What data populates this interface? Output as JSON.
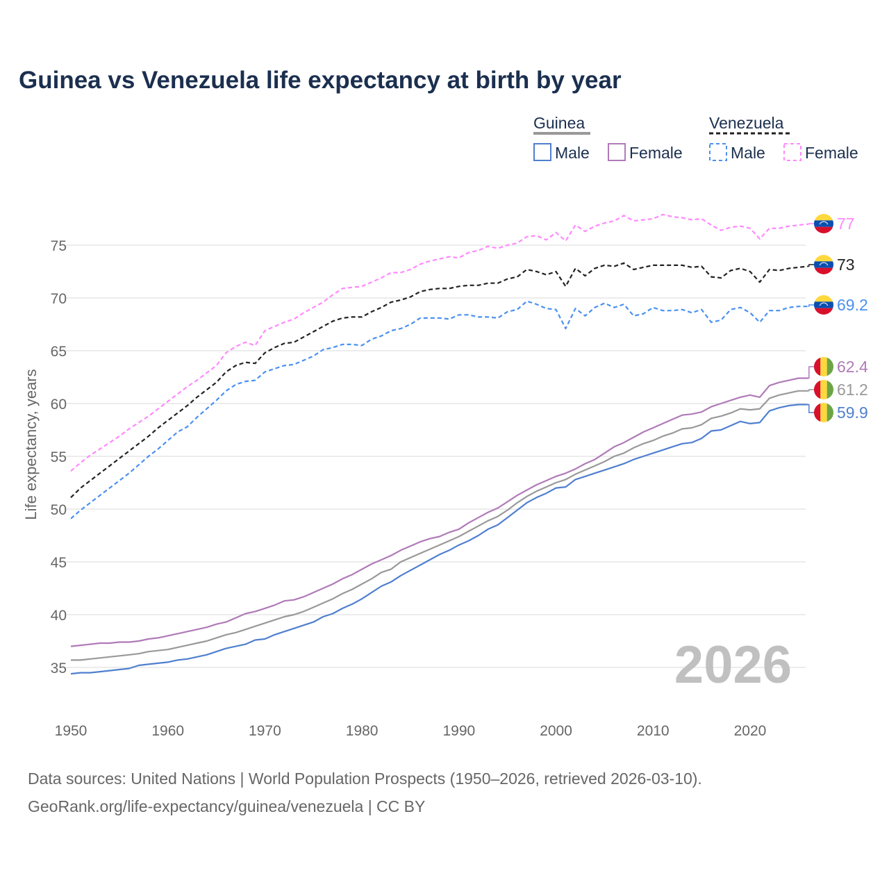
{
  "title": "Guinea vs Venezuela life expectancy at birth by year",
  "year_watermark": "2026",
  "source_line1": "Data sources: United Nations | World Population Prospects (1950–2026, retrieved 2026-03-10).",
  "source_line2": "GeoRank.org/life-expectancy/guinea/venezuela | CC BY",
  "legend": {
    "guinea": "Guinea",
    "venezuela": "Venezuela",
    "male": "Male",
    "female": "Female"
  },
  "chart_data": {
    "type": "line",
    "title": "Guinea vs Venezuela life expectancy at birth by year",
    "xlabel": "",
    "ylabel": "Life expectancy, years",
    "xlim": [
      1950,
      2026
    ],
    "ylim": [
      35,
      77
    ],
    "x_start": 1950,
    "xticks": [
      "1950",
      "1960",
      "1970",
      "1980",
      "1990",
      "2000",
      "2010",
      "2020"
    ],
    "yticks": [
      "35",
      "40",
      "45",
      "50",
      "55",
      "60",
      "65",
      "70",
      "75"
    ],
    "legend_position": "top-right",
    "grid": true,
    "series": [
      {
        "name": "Venezuela Female",
        "country": "Venezuela",
        "end_label": "77",
        "color": "#ff88ff",
        "dashed": true,
        "flag": "venezuela",
        "values": [
          53.6,
          54.4,
          55.1,
          55.7,
          56.3,
          56.9,
          57.6,
          58.2,
          58.8,
          59.5,
          60.2,
          60.9,
          61.6,
          62.2,
          62.9,
          63.6,
          64.8,
          65.4,
          65.8,
          65.5,
          66.9,
          67.3,
          67.7,
          68.0,
          68.6,
          69.1,
          69.6,
          70.3,
          70.9,
          71.0,
          71.1,
          71.5,
          71.9,
          72.4,
          72.4,
          72.7,
          73.2,
          73.5,
          73.7,
          73.9,
          73.8,
          74.3,
          74.5,
          74.9,
          74.7,
          75.0,
          75.2,
          75.8,
          75.9,
          75.5,
          76.2,
          75.4,
          76.9,
          76.3,
          76.8,
          77.1,
          77.3,
          77.8,
          77.3,
          77.4,
          77.5,
          77.9,
          77.7,
          77.6,
          77.4,
          77.5,
          76.9,
          76.4,
          76.7,
          76.8,
          76.6,
          75.6,
          76.6,
          76.6,
          76.8,
          76.9,
          77.0
        ]
      },
      {
        "name": "Venezuela Total",
        "country": "Venezuela",
        "end_label": "73",
        "color": "#222222",
        "dashed": true,
        "flag": "venezuela",
        "values": [
          51.1,
          52.0,
          52.7,
          53.4,
          54.1,
          54.8,
          55.5,
          56.2,
          56.9,
          57.7,
          58.4,
          59.1,
          59.8,
          60.6,
          61.3,
          62.0,
          63.0,
          63.6,
          63.9,
          63.8,
          64.8,
          65.3,
          65.7,
          65.8,
          66.3,
          66.8,
          67.3,
          67.8,
          68.1,
          68.2,
          68.2,
          68.7,
          69.1,
          69.6,
          69.8,
          70.1,
          70.6,
          70.8,
          70.9,
          70.9,
          71.1,
          71.2,
          71.2,
          71.4,
          71.4,
          71.8,
          72.0,
          72.7,
          72.5,
          72.2,
          72.5,
          71.1,
          72.8,
          72.1,
          72.8,
          73.1,
          73.0,
          73.3,
          72.7,
          72.9,
          73.1,
          73.1,
          73.1,
          73.1,
          72.9,
          73.0,
          72.0,
          71.9,
          72.6,
          72.8,
          72.5,
          71.5,
          72.7,
          72.6,
          72.8,
          72.9,
          73.0
        ]
      },
      {
        "name": "Venezuela Male",
        "country": "Venezuela",
        "end_label": "69.2",
        "color": "#4a90f0",
        "dashed": true,
        "flag": "venezuela",
        "values": [
          49.1,
          49.9,
          50.6,
          51.3,
          52.0,
          52.7,
          53.4,
          54.2,
          55.0,
          55.7,
          56.5,
          57.3,
          57.8,
          58.7,
          59.5,
          60.3,
          61.2,
          61.8,
          62.1,
          62.2,
          63.0,
          63.3,
          63.6,
          63.7,
          64.1,
          64.5,
          65.1,
          65.3,
          65.6,
          65.6,
          65.5,
          66.1,
          66.4,
          66.9,
          67.1,
          67.5,
          68.1,
          68.1,
          68.1,
          68.0,
          68.4,
          68.4,
          68.2,
          68.2,
          68.1,
          68.7,
          68.9,
          69.7,
          69.4,
          69.0,
          68.9,
          67.1,
          69.0,
          68.3,
          69.1,
          69.5,
          69.1,
          69.4,
          68.3,
          68.5,
          69.1,
          68.8,
          68.8,
          68.9,
          68.6,
          68.9,
          67.7,
          67.9,
          68.9,
          69.1,
          68.6,
          67.7,
          68.8,
          68.8,
          69.1,
          69.2,
          69.2
        ]
      },
      {
        "name": "Guinea Female",
        "country": "Guinea",
        "end_label": "62.4",
        "color": "#b07ab8",
        "dashed": false,
        "flag": "guinea",
        "values": [
          37.0,
          37.1,
          37.2,
          37.3,
          37.3,
          37.4,
          37.4,
          37.5,
          37.7,
          37.8,
          38.0,
          38.2,
          38.4,
          38.6,
          38.8,
          39.1,
          39.3,
          39.7,
          40.1,
          40.3,
          40.6,
          40.9,
          41.3,
          41.4,
          41.7,
          42.1,
          42.5,
          42.9,
          43.4,
          43.8,
          44.3,
          44.8,
          45.2,
          45.6,
          46.1,
          46.5,
          46.9,
          47.2,
          47.4,
          47.8,
          48.1,
          48.7,
          49.2,
          49.7,
          50.1,
          50.7,
          51.3,
          51.8,
          52.3,
          52.7,
          53.1,
          53.4,
          53.8,
          54.3,
          54.7,
          55.3,
          55.9,
          56.3,
          56.8,
          57.3,
          57.7,
          58.1,
          58.5,
          58.9,
          59.0,
          59.2,
          59.7,
          60.0,
          60.3,
          60.6,
          60.8,
          60.6,
          61.7,
          62.0,
          62.2,
          62.4,
          62.4
        ]
      },
      {
        "name": "Guinea Total",
        "country": "Guinea",
        "end_label": "61.2",
        "color": "#999999",
        "dashed": false,
        "flag": "guinea",
        "values": [
          35.7,
          35.7,
          35.8,
          35.9,
          36.0,
          36.1,
          36.2,
          36.3,
          36.5,
          36.6,
          36.7,
          36.9,
          37.1,
          37.3,
          37.5,
          37.8,
          38.1,
          38.3,
          38.6,
          38.9,
          39.2,
          39.5,
          39.8,
          40.0,
          40.3,
          40.7,
          41.1,
          41.5,
          42.0,
          42.4,
          42.9,
          43.4,
          44.0,
          44.3,
          45.0,
          45.4,
          45.8,
          46.2,
          46.6,
          47.0,
          47.4,
          47.9,
          48.4,
          48.9,
          49.3,
          49.9,
          50.6,
          51.2,
          51.7,
          52.1,
          52.5,
          52.8,
          53.3,
          53.7,
          54.1,
          54.5,
          55.0,
          55.3,
          55.8,
          56.2,
          56.5,
          56.9,
          57.2,
          57.6,
          57.7,
          58.0,
          58.6,
          58.8,
          59.1,
          59.5,
          59.4,
          59.5,
          60.5,
          60.8,
          61.0,
          61.2,
          61.2
        ]
      },
      {
        "name": "Guinea Male",
        "country": "Guinea",
        "end_label": "59.9",
        "color": "#4f7fcf",
        "dashed": false,
        "flag": "guinea",
        "values": [
          34.4,
          34.5,
          34.5,
          34.6,
          34.7,
          34.8,
          34.9,
          35.2,
          35.3,
          35.4,
          35.5,
          35.7,
          35.8,
          36.0,
          36.2,
          36.5,
          36.8,
          37.0,
          37.2,
          37.6,
          37.7,
          38.1,
          38.4,
          38.7,
          39.0,
          39.3,
          39.8,
          40.1,
          40.6,
          41.0,
          41.5,
          42.1,
          42.7,
          43.1,
          43.7,
          44.2,
          44.7,
          45.2,
          45.7,
          46.1,
          46.6,
          47.0,
          47.5,
          48.1,
          48.5,
          49.2,
          49.9,
          50.6,
          51.1,
          51.5,
          52.0,
          52.1,
          52.8,
          53.1,
          53.4,
          53.7,
          54.0,
          54.3,
          54.7,
          55.0,
          55.3,
          55.6,
          55.9,
          56.2,
          56.3,
          56.7,
          57.4,
          57.5,
          57.9,
          58.3,
          58.1,
          58.2,
          59.3,
          59.6,
          59.8,
          59.9,
          59.9
        ]
      }
    ]
  }
}
